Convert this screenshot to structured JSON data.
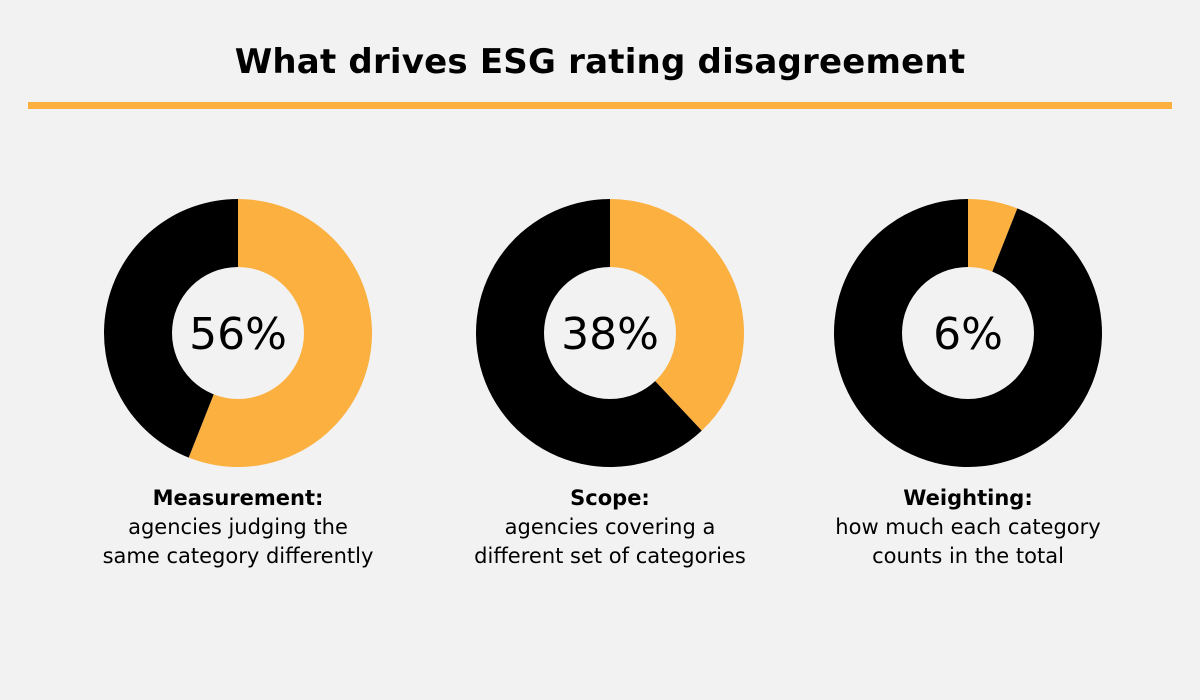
{
  "title": "What drives ESG rating disagreement",
  "colors": {
    "background": "#f2f2f2",
    "accent": "#fbb040",
    "dark": "#000000",
    "hole": "#f2f2f2"
  },
  "chart_data": [
    {
      "type": "pie",
      "label": "56%",
      "value": 56,
      "remainder": 44,
      "caption_title": "Measurement:",
      "caption_desc": "agencies judging the same category differently"
    },
    {
      "type": "pie",
      "label": "38%",
      "value": 38,
      "remainder": 62,
      "caption_title": "Scope:",
      "caption_desc": "agencies covering a different set of categories"
    },
    {
      "type": "pie",
      "label": "6%",
      "value": 6,
      "remainder": 94,
      "caption_title": "Weighting:",
      "caption_desc": "how much each category counts in the total"
    }
  ]
}
